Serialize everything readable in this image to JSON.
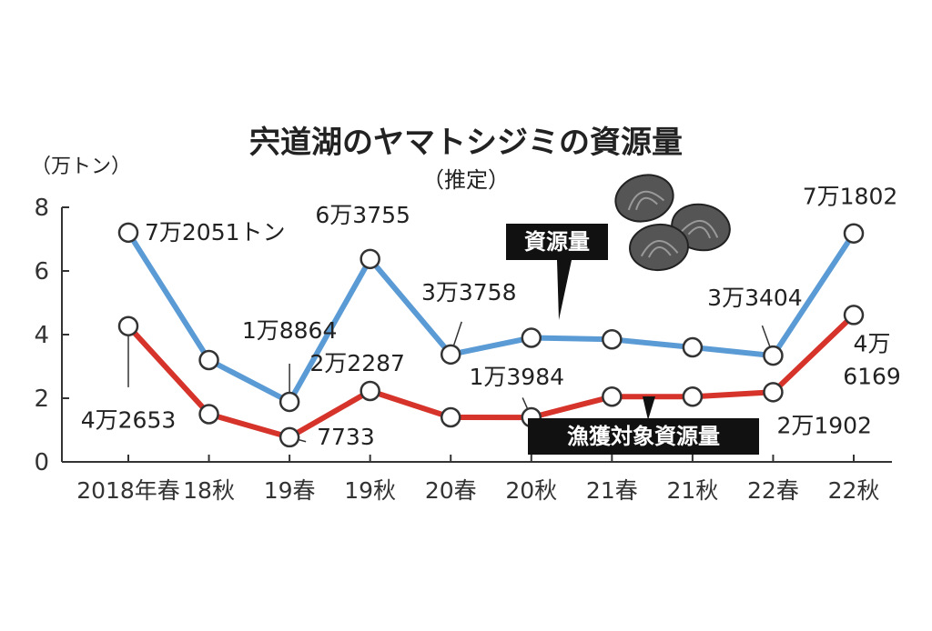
{
  "chart_data": {
    "type": "line",
    "title": "宍道湖のヤマトシジミの資源量",
    "subtitle": "（推定）",
    "y_unit_label": "（万トン）",
    "categories": [
      "2018年春",
      "18秋",
      "19春",
      "19秋",
      "20春",
      "20秋",
      "21春",
      "21秋",
      "22春",
      "22秋"
    ],
    "yticks": [
      0,
      2,
      4,
      6,
      8
    ],
    "ylim": [
      0,
      8
    ],
    "grid": false,
    "series": [
      {
        "name": "資源量",
        "color": "#5b9bd5",
        "values": [
          7.2051,
          3.2,
          1.8864,
          6.3755,
          3.3758,
          3.9,
          3.85,
          3.6,
          3.3404,
          7.1802
        ],
        "labels": [
          "7万2051トン",
          "",
          "1万8864",
          "6万3755",
          "3万3758",
          "",
          "",
          "",
          "3万3404",
          "7万1802"
        ]
      },
      {
        "name": "漁獲対象資源量",
        "color": "#d6332a",
        "values": [
          4.2653,
          1.5,
          0.7733,
          2.2287,
          1.4,
          1.3984,
          2.05,
          2.05,
          2.1902,
          4.6169
        ],
        "labels": [
          "4万2653",
          "",
          "7733",
          "2万2287",
          "",
          "1万3984",
          "",
          "",
          "2万1902",
          "4万6169"
        ]
      }
    ]
  }
}
